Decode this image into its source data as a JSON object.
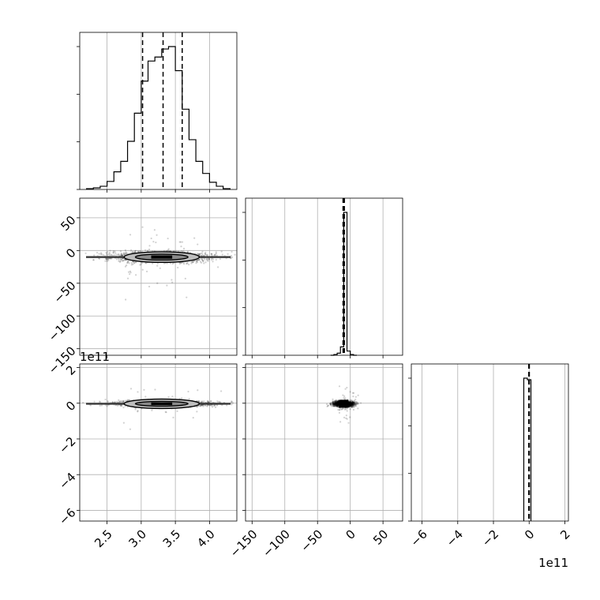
{
  "chart_data": {
    "type": "corner",
    "title": "",
    "parameters": [
      {
        "id": "p0",
        "range": [
          2.1,
          4.4
        ],
        "ticks": [
          2.5,
          3.0,
          3.5,
          4.0
        ],
        "tick_labels": [
          "2.5",
          "3.0",
          "3.5",
          "4.0"
        ],
        "offset_label": ""
      },
      {
        "id": "p1",
        "range": [
          -160,
          80
        ],
        "ticks": [
          -150,
          -100,
          -50,
          0,
          50
        ],
        "tick_labels": [
          "−150",
          "−100",
          "−50",
          "0",
          "50"
        ],
        "offset_label": ""
      },
      {
        "id": "p2",
        "range": [
          -6.6,
          2.2
        ],
        "ticks": [
          -6,
          -4,
          -2,
          0,
          2
        ],
        "tick_labels": [
          "−6",
          "−4",
          "−2",
          "0",
          "2"
        ],
        "offset_label": "1e11"
      }
    ],
    "histograms": [
      {
        "param": "p0",
        "bin_edges": [
          2.2,
          2.3,
          2.4,
          2.5,
          2.6,
          2.7,
          2.8,
          2.9,
          3.0,
          3.1,
          3.2,
          3.3,
          3.4,
          3.5,
          3.6,
          3.7,
          3.8,
          3.9,
          4.0,
          4.1,
          4.2,
          4.3
        ],
        "counts": [
          1,
          2,
          4,
          10,
          22,
          35,
          60,
          95,
          135,
          160,
          165,
          175,
          178,
          148,
          100,
          62,
          35,
          20,
          9,
          4,
          1
        ],
        "quantiles": [
          3.02,
          3.32,
          3.6
        ]
      },
      {
        "param": "p1",
        "bin_edges": [
          -30,
          -25,
          -20,
          -15,
          -10,
          -5,
          0,
          5,
          10
        ],
        "counts": [
          0,
          1,
          3,
          12,
          205,
          6,
          1,
          0
        ],
        "quantiles": [
          -11,
          -10,
          -9
        ]
      },
      {
        "param": "p2",
        "bin_edges": [
          -0.3,
          -0.1,
          0.1
        ],
        "counts": [
          180,
          178
        ],
        "quantiles": [
          -0.02,
          -0.005,
          0.01
        ]
      }
    ],
    "pairs": [
      {
        "x": "p0",
        "y": "p1",
        "center": [
          3.3,
          -10
        ],
        "spread": [
          0.38,
          4
        ],
        "outer_rx": 0.55,
        "outer_ry": 4.5
      },
      {
        "x": "p0",
        "y": "p2",
        "center": [
          3.3,
          -0.03
        ],
        "spread": [
          0.38,
          0.08
        ],
        "outer_rx": 0.55,
        "outer_ry": 0.09
      },
      {
        "x": "p1",
        "y": "p2",
        "center": [
          -10,
          -0.03
        ],
        "spread": [
          8,
          0.08
        ],
        "outer_rx": 5,
        "outer_ry": 0.09
      }
    ],
    "grid": true,
    "legend": "none"
  }
}
